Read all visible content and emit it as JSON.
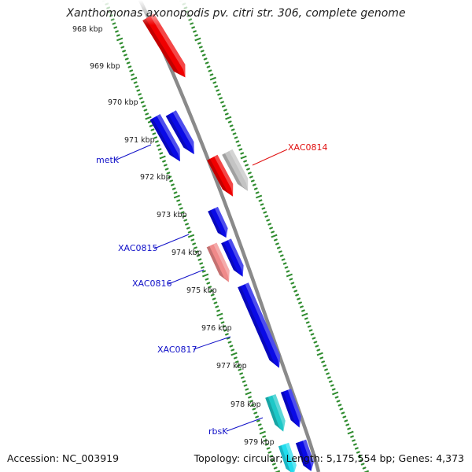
{
  "title": "Xanthomonas axonopodis pv. citri str. 306, complete genome",
  "footer": {
    "accession": "Accession: NC_003919",
    "summary": "Topology: circular; Length: 5,175,554 bp; Genes: 4,373"
  },
  "colors": {
    "backbone": "#8a8a8a",
    "tick_ring": "#2e8b2e",
    "forward_gene": "#0a0ae6",
    "label_blue": "#1010c8",
    "label_red": "#e01010"
  },
  "ticks": [
    "968 kbp",
    "969 kbp",
    "970 kbp",
    "971 kbp",
    "972 kbp",
    "973 kbp",
    "974 kbp",
    "975 kbp",
    "976 kbp",
    "977 kbp",
    "978 kbp",
    "979 kbp"
  ],
  "genes": [
    {
      "name": "",
      "color": "#f00000",
      "strand": "outer"
    },
    {
      "name": "",
      "color": "#0a0ae6",
      "strand": "inner"
    },
    {
      "name": "",
      "color": "#0a0ae6",
      "strand": "inner"
    },
    {
      "name": "",
      "color": "#f00000",
      "strand": "outer"
    },
    {
      "name": "",
      "color": "#c4c4c4",
      "strand": "outer"
    },
    {
      "name": "",
      "color": "#0a0ae6",
      "strand": "inner"
    },
    {
      "name": "",
      "color": "#f08a8a",
      "strand": "inner"
    },
    {
      "name": "",
      "color": "#0a0ae6",
      "strand": "inner"
    },
    {
      "name": "",
      "color": "#0a0ae6",
      "strand": "inner"
    },
    {
      "name": "",
      "color": "#1ec8c8",
      "strand": "inner"
    },
    {
      "name": "",
      "color": "#0a0ae6",
      "strand": "inner"
    },
    {
      "name": "",
      "color": "#22ddee",
      "strand": "inner"
    },
    {
      "name": "",
      "color": "#0a0ae6",
      "strand": "inner"
    }
  ],
  "gene_labels": [
    {
      "text": "metK",
      "color": "#1010c8"
    },
    {
      "text": "XAC0814",
      "color": "#e01010"
    },
    {
      "text": "XAC0815",
      "color": "#1010c8"
    },
    {
      "text": "XAC0816",
      "color": "#1010c8"
    },
    {
      "text": "XAC0817",
      "color": "#1010c8"
    },
    {
      "text": "rbsK",
      "color": "#1010c8"
    }
  ]
}
